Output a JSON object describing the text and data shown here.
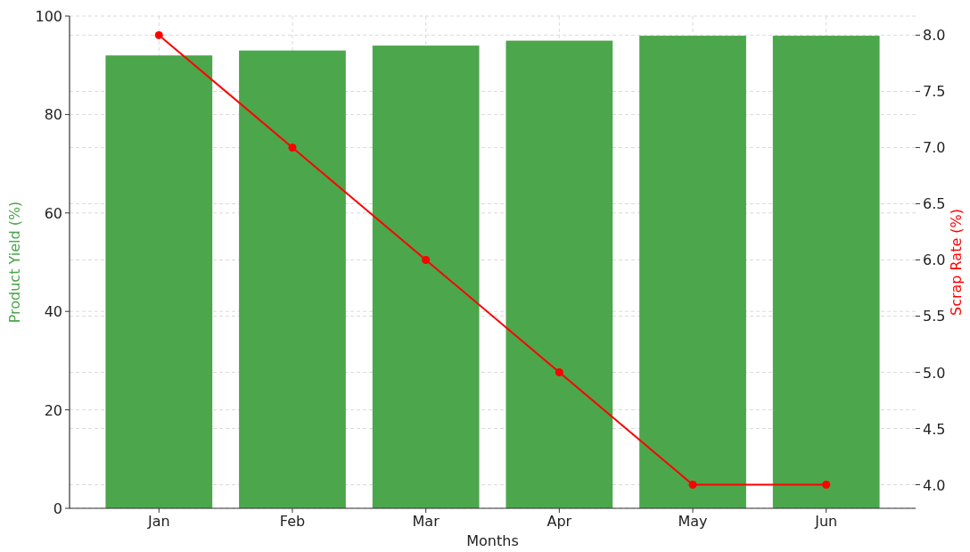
{
  "chart_data": {
    "type": "bar",
    "xlabel": "Months",
    "ylabel": "Product Yield (%)",
    "y2label": "Scrap Rate (%)",
    "categories": [
      "Jan",
      "Feb",
      "Mar",
      "Apr",
      "May",
      "Jun"
    ],
    "series": [
      {
        "color": "#4ca64c",
        "values": [
          92,
          93,
          94,
          95,
          96,
          96
        ]
      },
      {
        "type": "line",
        "axis": "y2",
        "color": "#ff0000",
        "marker": "circle",
        "values": [
          8,
          7,
          6,
          5,
          4,
          4
        ]
      }
    ],
    "ylim": [
      0,
      100
    ],
    "yticks": [
      0,
      20,
      40,
      60,
      80,
      100
    ],
    "y2lim": [
      3.79,
      8.17
    ],
    "y2ticks": [
      {
        "value": 4,
        "label": "4.0"
      },
      {
        "value": 4.5,
        "label": "4.5"
      },
      {
        "value": 5,
        "label": "5.0"
      },
      {
        "value": 5.5,
        "label": "5.5"
      },
      {
        "value": 6,
        "label": "6.0"
      },
      {
        "value": 6.5,
        "label": "6.5"
      },
      {
        "value": 7,
        "label": "7.0"
      },
      {
        "value": 7.5,
        "label": "7.5"
      },
      {
        "value": 8,
        "label": "8.0"
      }
    ],
    "grid": true
  }
}
